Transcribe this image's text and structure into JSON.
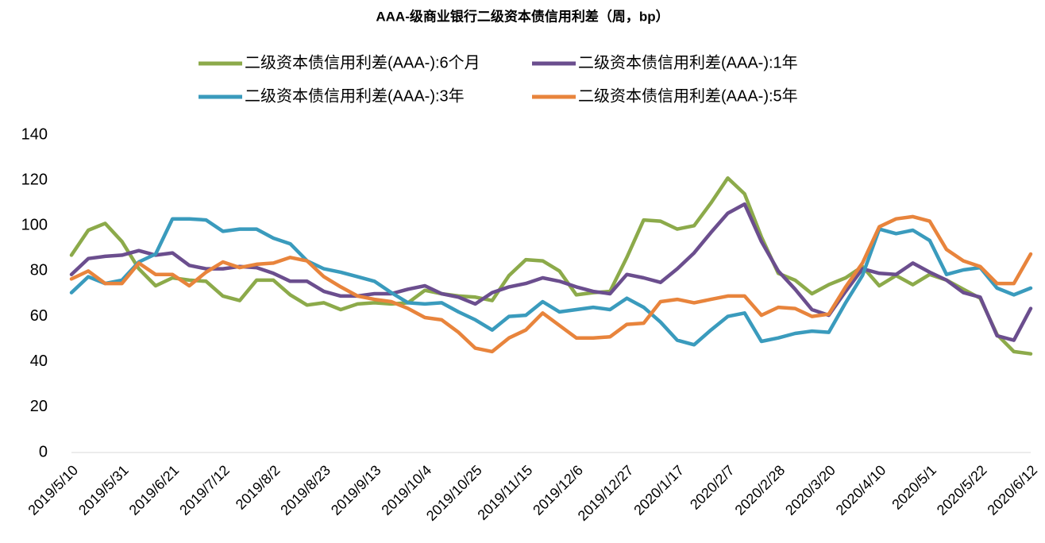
{
  "chart_data": {
    "type": "line",
    "title": "AAA-级商业银行二级资本债信用利差（周，bp）",
    "categories": [
      "2019/5/10",
      null,
      null,
      "2019/5/31",
      null,
      null,
      "2019/6/21",
      null,
      null,
      "2019/7/12",
      null,
      null,
      "2019/8/2",
      null,
      null,
      "2019/8/23",
      null,
      null,
      "2019/9/13",
      null,
      null,
      "2019/10/4",
      null,
      null,
      "2019/10/25",
      null,
      null,
      "2019/11/15",
      null,
      null,
      "2019/12/6",
      null,
      null,
      "2019/12/27",
      null,
      null,
      "2020/1/17",
      null,
      null,
      "2020/2/7",
      null,
      null,
      "2020/2/28",
      null,
      null,
      "2020/3/20",
      null,
      null,
      "2020/4/10",
      null,
      null,
      "2020/5/1",
      null,
      null,
      "2020/5/22",
      null,
      null,
      "2020/6/12"
    ],
    "series": [
      {
        "name": "二级资本债信用利差(AAA-):6个月",
        "color": "#8caa4a",
        "values": [
          87,
          98,
          101,
          93,
          81,
          73.5,
          77,
          76,
          75.5,
          69,
          67,
          76,
          76,
          69.5,
          65,
          66,
          63,
          65.5,
          66,
          65.5,
          66,
          71.5,
          70,
          69,
          68.5,
          67,
          78,
          85,
          84.5,
          80,
          69.5,
          70.5,
          71,
          86,
          102.5,
          102,
          98.5,
          100,
          110,
          121,
          114,
          95,
          79,
          76,
          70,
          74,
          77,
          82,
          73.5,
          78,
          74,
          78.5,
          76,
          72,
          68,
          52,
          44.5,
          43.5
        ]
      },
      {
        "name": "二级资本债信用利差(AAA-):1年",
        "color": "#6b4e8e",
        "values": [
          78.5,
          85.5,
          86.5,
          87,
          89,
          87,
          88,
          82.5,
          81,
          81,
          82,
          81.5,
          79,
          75.5,
          75.5,
          71,
          69,
          69,
          70,
          70,
          72,
          73.5,
          70,
          68.5,
          65.5,
          70.5,
          73,
          74.5,
          77,
          75.5,
          73,
          71,
          70,
          78.5,
          77,
          75,
          81,
          88,
          97,
          105.5,
          109.5,
          93,
          80,
          72,
          63,
          60.5,
          71,
          81,
          79,
          78.5,
          83.5,
          79.5,
          76,
          70.5,
          68.5,
          51.5,
          49.5,
          63.5
        ]
      },
      {
        "name": "二级资本债信用利差(AAA-):3年",
        "color": "#3a9bbd",
        "values": [
          70.5,
          77.5,
          74.5,
          76,
          84,
          87.5,
          103,
          103,
          102.5,
          97.5,
          98.5,
          98.5,
          94.5,
          92,
          84.5,
          81,
          79.5,
          77.5,
          75.5,
          70.5,
          66,
          65.5,
          66,
          62,
          58.5,
          54,
          60,
          60.5,
          66.5,
          62,
          63,
          64,
          63,
          68,
          64,
          57.5,
          49.5,
          47.5,
          54,
          60,
          61.5,
          49,
          50.5,
          52.5,
          53.5,
          53,
          66,
          78,
          98.5,
          96.5,
          98,
          93.5,
          78.5,
          80.5,
          81.5,
          72.5,
          69.5,
          72.5
        ]
      },
      {
        "name": "二级资本债信用利差(AAA-):5年",
        "color": "#e8843c",
        "values": [
          76.5,
          80,
          74.5,
          74.5,
          83.5,
          78.5,
          78.5,
          73.5,
          79.5,
          84,
          81.5,
          83,
          83.5,
          86,
          84.5,
          77.5,
          73,
          69,
          67.5,
          66.5,
          63.5,
          59.5,
          58.5,
          53,
          46,
          44.5,
          50.5,
          54,
          61.5,
          56,
          50.5,
          50.5,
          51,
          56.5,
          57,
          66.5,
          67.5,
          66,
          67.5,
          69,
          69,
          60.5,
          64,
          63.5,
          60,
          61,
          73,
          83.5,
          99.5,
          103,
          104,
          102,
          89.5,
          84.5,
          82,
          74.5,
          74.5,
          87.5
        ]
      }
    ],
    "ylim": [
      0,
      140
    ],
    "yticks": [
      0,
      20,
      40,
      60,
      80,
      100,
      120,
      140
    ],
    "grid": false,
    "legend": "top"
  }
}
